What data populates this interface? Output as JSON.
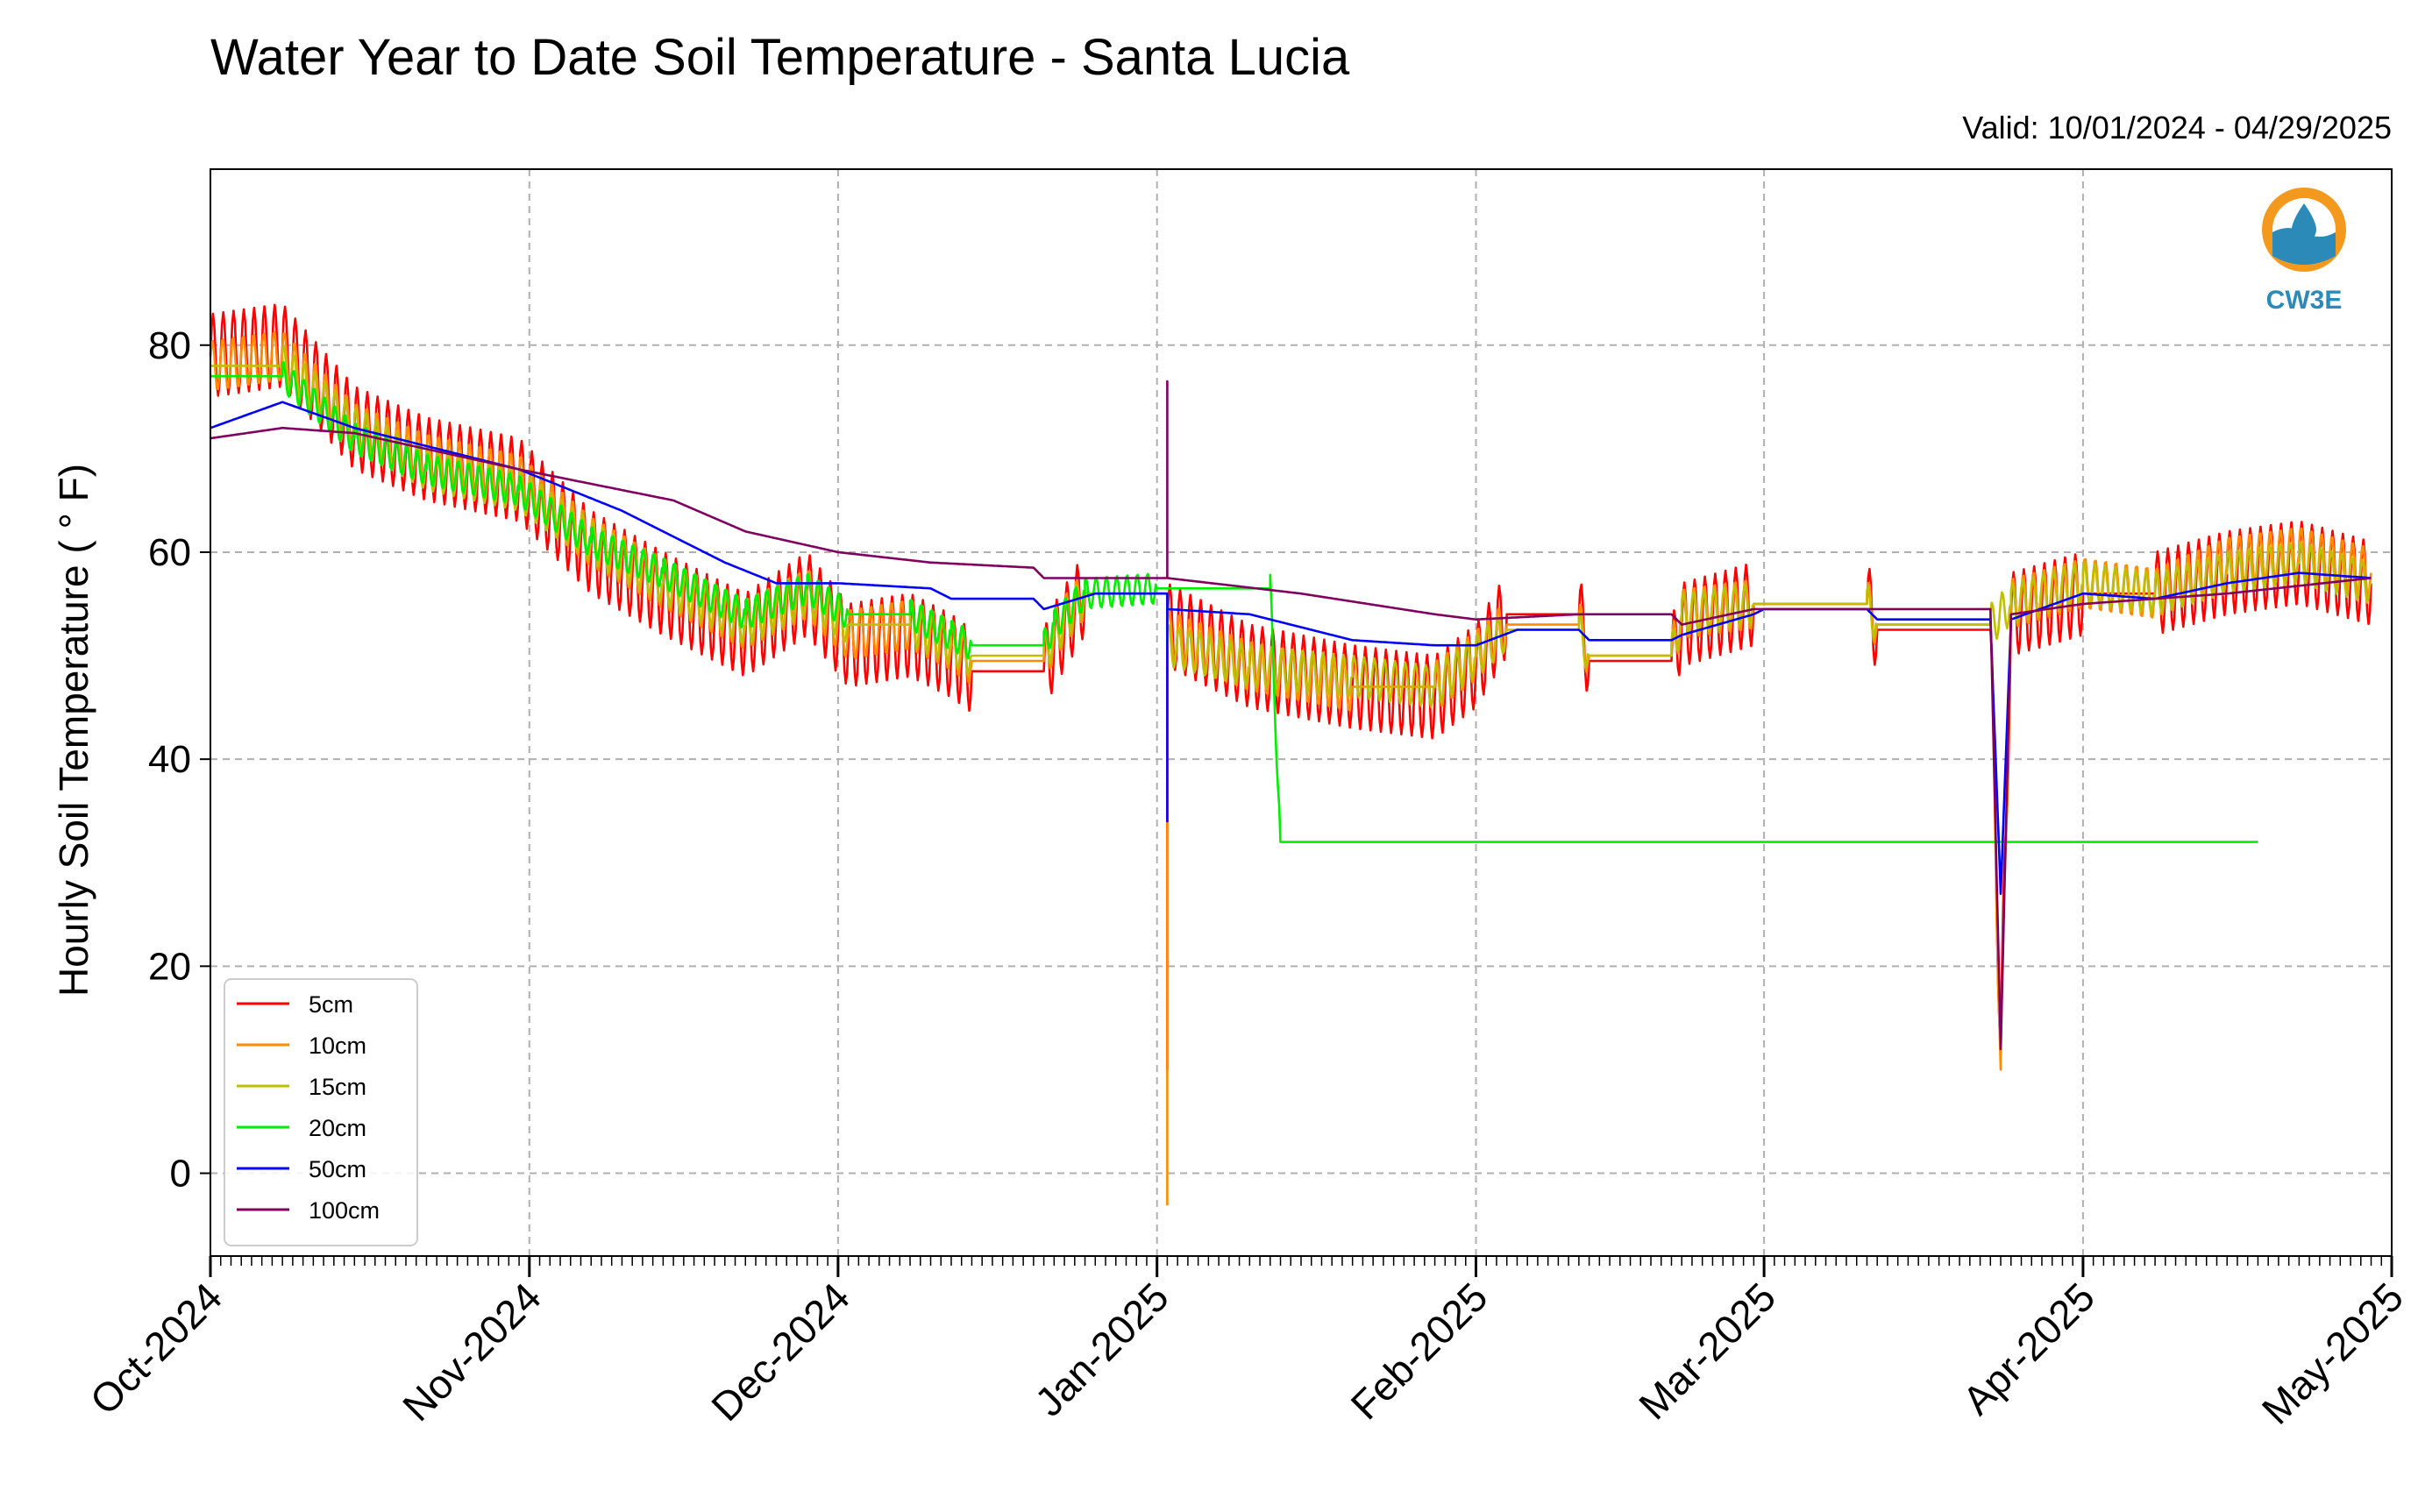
{
  "chart_data": {
    "type": "line",
    "title": "Water Year to Date Soil Temperature - Santa Lucia",
    "subtitle": "Valid: 10/01/2024 - 04/29/2025",
    "ylabel": "Hourly Soil Temperature ( $^\\circ$F)",
    "ylabel_display": "Hourly Soil Temperature ( ° F)",
    "xlabel": "",
    "ylim": [
      -8,
      97
    ],
    "yticks": [
      0,
      20,
      40,
      60,
      80
    ],
    "xlim": [
      "2024-10-01",
      "2025-05-01"
    ],
    "xticks": [
      {
        "date": "2024-10-01",
        "label": "Oct-2024"
      },
      {
        "date": "2024-11-01",
        "label": "Nov-2024"
      },
      {
        "date": "2024-12-01",
        "label": "Dec-2024"
      },
      {
        "date": "2025-01-01",
        "label": "Jan-2025"
      },
      {
        "date": "2025-02-01",
        "label": "Feb-2025"
      },
      {
        "date": "2025-03-01",
        "label": "Mar-2025"
      },
      {
        "date": "2025-04-01",
        "label": "Apr-2025"
      },
      {
        "date": "2025-05-01",
        "label": "May-2025"
      }
    ],
    "grid": true,
    "legend_position": "lower-left",
    "logo_text": "CW3E",
    "series": [
      {
        "name": "5cm",
        "color": "#ff0000",
        "amplitude": 8,
        "points": [
          [
            "2024-10-01",
            79
          ],
          [
            "2024-10-08",
            80
          ],
          [
            "2024-10-15",
            72
          ],
          [
            "2024-10-22",
            69
          ],
          [
            "2024-10-31",
            67
          ],
          [
            "2024-11-07",
            60
          ],
          [
            "2024-11-14",
            56
          ],
          [
            "2024-11-22",
            52
          ],
          [
            "2024-11-28",
            56
          ],
          [
            "2024-12-02",
            51
          ],
          [
            "2024-12-08",
            52
          ],
          [
            "2024-12-12",
            50
          ],
          [
            "2024-12-14",
            48.5
          ],
          [
            "2024-12-21",
            48.5
          ],
          [
            "2024-12-22",
            51
          ],
          [
            "2024-12-25",
            56
          ],
          [
            "2025-01-01",
            56
          ],
          [
            "2025-01-02",
            56
          ],
          [
            "2025-01-02",
            10
          ],
          [
            "2025-01-02",
            53
          ],
          [
            "2025-01-10",
            49
          ],
          [
            "2025-01-20",
            47
          ],
          [
            "2025-01-28",
            46
          ],
          [
            "2025-02-01",
            49
          ],
          [
            "2025-02-04",
            54
          ],
          [
            "2025-02-11",
            54
          ],
          [
            "2025-02-12",
            49.5
          ],
          [
            "2025-02-20",
            49.5
          ],
          [
            "2025-02-21",
            53
          ],
          [
            "2025-02-28",
            55
          ],
          [
            "2025-03-01",
            55
          ],
          [
            "2025-03-11",
            55
          ],
          [
            "2025-03-12",
            52.5
          ],
          [
            "2025-03-23",
            52.5
          ],
          [
            "2025-03-24",
            12
          ],
          [
            "2025-03-25",
            54
          ],
          [
            "2025-04-01",
            56
          ],
          [
            "2025-04-08",
            56
          ],
          [
            "2025-04-15",
            58
          ],
          [
            "2025-04-22",
            59
          ],
          [
            "2025-04-29",
            57
          ]
        ]
      },
      {
        "name": "10cm",
        "color": "#ff8c00",
        "amplitude": 5,
        "points": [
          [
            "2024-10-01",
            78
          ],
          [
            "2024-10-08",
            79
          ],
          [
            "2024-10-15",
            72
          ],
          [
            "2024-10-22",
            69
          ],
          [
            "2024-10-31",
            67
          ],
          [
            "2024-11-07",
            61
          ],
          [
            "2024-11-14",
            57
          ],
          [
            "2024-11-22",
            53
          ],
          [
            "2024-11-28",
            56
          ],
          [
            "2024-12-02",
            52
          ],
          [
            "2024-12-08",
            53
          ],
          [
            "2024-12-12",
            51
          ],
          [
            "2024-12-14",
            49.5
          ],
          [
            "2024-12-21",
            49.5
          ],
          [
            "2024-12-22",
            52
          ],
          [
            "2024-12-25",
            56
          ],
          [
            "2025-01-01",
            56
          ],
          [
            "2025-01-02",
            56
          ],
          [
            "2025-01-02",
            -3
          ],
          [
            "2025-01-02",
            52
          ],
          [
            "2025-01-10",
            49
          ],
          [
            "2025-01-20",
            47
          ],
          [
            "2025-01-28",
            47
          ],
          [
            "2025-02-01",
            50
          ],
          [
            "2025-02-04",
            53
          ],
          [
            "2025-02-11",
            53
          ],
          [
            "2025-02-12",
            50
          ],
          [
            "2025-02-20",
            50
          ],
          [
            "2025-02-21",
            54
          ],
          [
            "2025-02-28",
            55
          ],
          [
            "2025-03-01",
            55
          ],
          [
            "2025-03-11",
            55
          ],
          [
            "2025-03-12",
            53
          ],
          [
            "2025-03-23",
            53
          ],
          [
            "2025-03-24",
            10
          ],
          [
            "2025-03-25",
            55
          ],
          [
            "2025-04-01",
            57
          ],
          [
            "2025-04-08",
            56
          ],
          [
            "2025-04-15",
            59
          ],
          [
            "2025-04-22",
            60
          ],
          [
            "2025-04-29",
            58
          ]
        ]
      },
      {
        "name": "15cm",
        "color": "#bfbf00",
        "amplitude": 4,
        "points": [
          [
            "2024-10-01",
            78
          ],
          [
            "2024-10-08",
            78
          ],
          [
            "2024-10-15",
            72
          ],
          [
            "2024-10-22",
            68
          ],
          [
            "2024-10-31",
            66
          ],
          [
            "2024-11-07",
            61
          ],
          [
            "2024-11-14",
            57
          ],
          [
            "2024-11-22",
            53
          ],
          [
            "2024-11-28",
            56
          ],
          [
            "2024-12-02",
            53
          ],
          [
            "2024-12-08",
            53
          ],
          [
            "2024-12-12",
            51
          ],
          [
            "2024-12-14",
            50
          ],
          [
            "2024-12-21",
            50
          ],
          [
            "2024-12-22",
            52
          ],
          [
            "2024-12-25",
            56
          ],
          [
            "2025-01-01",
            56
          ],
          [
            "2025-01-02",
            56
          ],
          [
            "2025-01-02",
            51
          ],
          [
            "2025-01-10",
            49
          ],
          [
            "2025-01-20",
            48
          ],
          [
            "2025-01-28",
            47
          ],
          [
            "2025-02-01",
            50
          ],
          [
            "2025-02-04",
            52.5
          ],
          [
            "2025-02-11",
            52.5
          ],
          [
            "2025-02-12",
            50
          ],
          [
            "2025-02-20",
            50
          ],
          [
            "2025-02-21",
            54
          ],
          [
            "2025-02-28",
            55
          ],
          [
            "2025-03-01",
            55
          ],
          [
            "2025-03-11",
            55
          ],
          [
            "2025-03-12",
            53
          ],
          [
            "2025-03-23",
            53
          ],
          [
            "2025-03-25",
            55
          ],
          [
            "2025-04-01",
            57
          ],
          [
            "2025-04-08",
            56
          ],
          [
            "2025-04-15",
            58
          ],
          [
            "2025-04-22",
            59
          ],
          [
            "2025-04-29",
            57
          ]
        ]
      },
      {
        "name": "20cm",
        "color": "#00ee00",
        "amplitude": 3,
        "points": [
          [
            "2024-10-01",
            77
          ],
          [
            "2024-10-08",
            77
          ],
          [
            "2024-10-15",
            71
          ],
          [
            "2024-10-22",
            68
          ],
          [
            "2024-10-31",
            66
          ],
          [
            "2024-11-07",
            61
          ],
          [
            "2024-11-14",
            58
          ],
          [
            "2024-11-22",
            54
          ],
          [
            "2024-11-28",
            56.5
          ],
          [
            "2024-12-02",
            54
          ],
          [
            "2024-12-08",
            54
          ],
          [
            "2024-12-12",
            52
          ],
          [
            "2024-12-14",
            51
          ],
          [
            "2024-12-21",
            51
          ],
          [
            "2024-12-22",
            53
          ],
          [
            "2024-12-25",
            56
          ],
          [
            "2025-01-01",
            56.5
          ],
          [
            "2025-01-12",
            56.5
          ],
          [
            "2025-01-13",
            32
          ],
          [
            "2025-04-18",
            32
          ]
        ]
      },
      {
        "name": "50cm",
        "color": "#0000ff",
        "amplitude": 0,
        "points": [
          [
            "2024-10-01",
            72
          ],
          [
            "2024-10-08",
            74.5
          ],
          [
            "2024-10-15",
            72
          ],
          [
            "2024-10-31",
            68
          ],
          [
            "2024-11-10",
            64
          ],
          [
            "2024-11-20",
            59
          ],
          [
            "2024-11-25",
            57
          ],
          [
            "2024-12-01",
            57
          ],
          [
            "2024-12-10",
            56.5
          ],
          [
            "2024-12-12",
            55.5
          ],
          [
            "2024-12-20",
            55.5
          ],
          [
            "2024-12-21",
            54.5
          ],
          [
            "2024-12-26",
            56
          ],
          [
            "2025-01-01",
            56
          ],
          [
            "2025-01-02",
            56
          ],
          [
            "2025-01-02",
            34
          ],
          [
            "2025-01-02",
            54.5
          ],
          [
            "2025-01-10",
            54
          ],
          [
            "2025-01-20",
            51.5
          ],
          [
            "2025-01-28",
            51
          ],
          [
            "2025-02-01",
            51
          ],
          [
            "2025-02-05",
            52.5
          ],
          [
            "2025-02-11",
            52.5
          ],
          [
            "2025-02-12",
            51.5
          ],
          [
            "2025-02-20",
            51.5
          ],
          [
            "2025-02-21",
            52
          ],
          [
            "2025-02-28",
            54
          ],
          [
            "2025-03-01",
            54.5
          ],
          [
            "2025-03-11",
            54.5
          ],
          [
            "2025-03-12",
            53.5
          ],
          [
            "2025-03-23",
            53.5
          ],
          [
            "2025-03-24",
            27
          ],
          [
            "2025-03-25",
            53.5
          ],
          [
            "2025-04-01",
            56
          ],
          [
            "2025-04-08",
            55.5
          ],
          [
            "2025-04-15",
            57
          ],
          [
            "2025-04-22",
            58
          ],
          [
            "2025-04-29",
            57.5
          ]
        ]
      },
      {
        "name": "100cm",
        "color": "#800060",
        "amplitude": 0,
        "points": [
          [
            "2024-10-01",
            71
          ],
          [
            "2024-10-08",
            72
          ],
          [
            "2024-10-15",
            71.5
          ],
          [
            "2024-10-31",
            68
          ],
          [
            "2024-11-15",
            65
          ],
          [
            "2024-11-22",
            62
          ],
          [
            "2024-12-01",
            60
          ],
          [
            "2024-12-10",
            59
          ],
          [
            "2024-12-20",
            58.5
          ],
          [
            "2024-12-21",
            57.5
          ],
          [
            "2025-01-01",
            57.5
          ],
          [
            "2025-01-02",
            57.5
          ],
          [
            "2025-01-02",
            76.5
          ],
          [
            "2025-01-02",
            57.5
          ],
          [
            "2025-01-15",
            56
          ],
          [
            "2025-01-28",
            54
          ],
          [
            "2025-02-01",
            53.5
          ],
          [
            "2025-02-11",
            54
          ],
          [
            "2025-02-20",
            54
          ],
          [
            "2025-02-21",
            53
          ],
          [
            "2025-02-28",
            54.5
          ],
          [
            "2025-03-11",
            54.5
          ],
          [
            "2025-03-23",
            54.5
          ],
          [
            "2025-03-24",
            12
          ],
          [
            "2025-03-25",
            54
          ],
          [
            "2025-04-01",
            55
          ],
          [
            "2025-04-15",
            56
          ],
          [
            "2025-04-29",
            57.5
          ]
        ]
      }
    ]
  }
}
